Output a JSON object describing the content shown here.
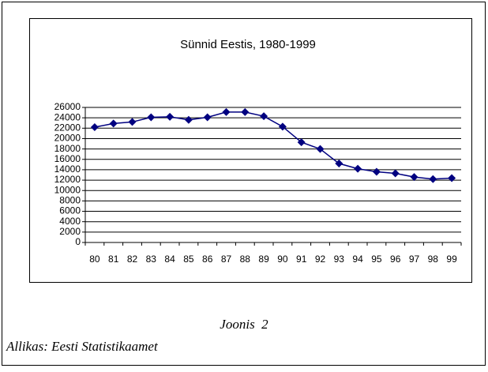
{
  "chart_data": {
    "type": "line",
    "title": "Sünnid Eestis, 1980-1999",
    "categories": [
      "80",
      "81",
      "82",
      "83",
      "84",
      "85",
      "86",
      "87",
      "88",
      "89",
      "90",
      "91",
      "92",
      "93",
      "94",
      "95",
      "96",
      "97",
      "98",
      "99"
    ],
    "series": [
      {
        "name": "Sünnid",
        "color": "#000080",
        "values": [
          22200,
          22900,
          23200,
          24100,
          24200,
          23600,
          24100,
          25100,
          25100,
          24300,
          22300,
          19300,
          18000,
          15200,
          14200,
          13600,
          13300,
          12600,
          12200,
          12400
        ]
      }
    ],
    "ylim": [
      0,
      26000
    ],
    "yticks": [
      0,
      2000,
      4000,
      6000,
      8000,
      10000,
      12000,
      14000,
      16000,
      18000,
      20000,
      22000,
      24000,
      26000
    ],
    "grid": true
  },
  "caption": "Joonis  2",
  "source": "Allikas: Eesti Statistikaamet"
}
